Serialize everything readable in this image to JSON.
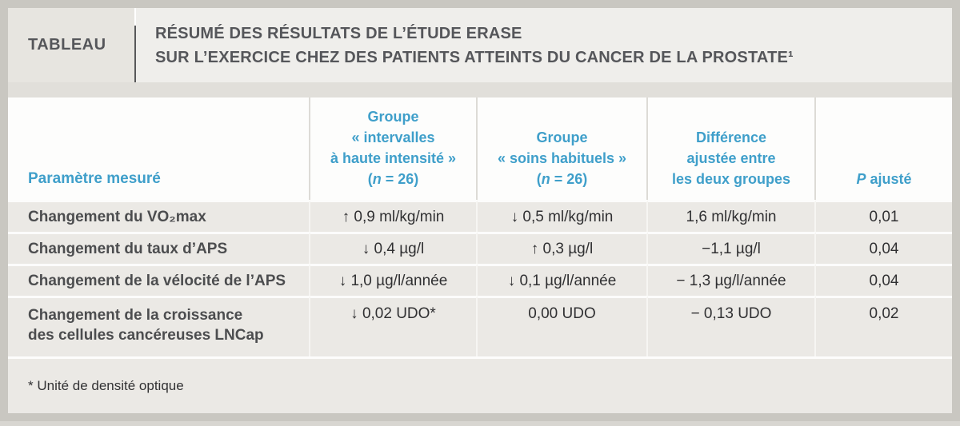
{
  "banner": {
    "label": "TABLEAU",
    "title_line1": "RÉSUMÉ DES RÉSULTATS DE L’ÉTUDE ERASE",
    "title_line2": "SUR L’EXERCICE CHEZ DES PATIENTS ATTEINTS DU CANCER DE LA PROSTATE¹"
  },
  "table": {
    "col1_header": "Paramètre mesuré",
    "col2_header": {
      "lines": [
        "Groupe",
        "« intervalles",
        "à haute intensité »"
      ],
      "n_open": "(",
      "n_italic": "n",
      "n_close": " = 26)"
    },
    "col3_header": {
      "lines": [
        "Groupe",
        "« soins habituels »"
      ],
      "n_open": "(",
      "n_italic": "n",
      "n_close": " = 26)"
    },
    "col4_header": {
      "lines": [
        "Différence",
        "ajustée entre",
        "les deux groupes"
      ]
    },
    "col5_header": {
      "italic": "P",
      "rest": " ajusté"
    },
    "rows": [
      {
        "param": "Changement du VO₂max",
        "hiit": "↑ 0,9 ml/kg/min",
        "usual": "↓ 0,5 ml/kg/min",
        "diff": "1,6 ml/kg/min",
        "p": "0,01"
      },
      {
        "param": "Changement du taux d’APS",
        "hiit": "↓ 0,4 µg/l",
        "usual": "↑ 0,3 µg/l",
        "diff": "−1,1 µg/l",
        "p": "0,04"
      },
      {
        "param": "Changement de la vélocité de l’APS",
        "hiit": "↓ 1,0 µg/l/année",
        "usual": "↓ 0,1 µg/l/année",
        "diff": "− 1,3 µg/l/année",
        "p": "0,04"
      },
      {
        "param_lines": [
          "Changement de la croissance",
          "des cellules cancéreuses LNCap"
        ],
        "hiit": "↓ 0,02 UDO*",
        "usual": "0,00 UDO",
        "diff": "− 0,13 UDO",
        "p": "0,02"
      }
    ]
  },
  "footnote": "* Unité de densité optique",
  "colors": {
    "accent_blue": "#3f9fca",
    "banner_text": "#55565a",
    "row_background": "#ebe9e5",
    "frame_gray": "#c9c7c1"
  }
}
